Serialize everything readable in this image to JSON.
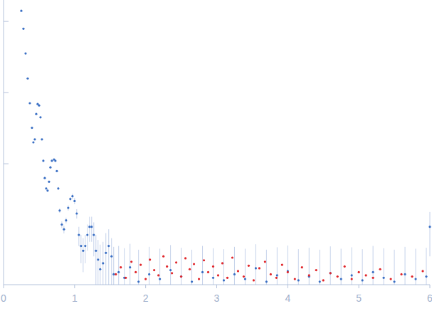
{
  "chart_data": {
    "type": "scatter",
    "log": "y",
    "tick_labels": "x",
    "xlim": [
      0,
      6
    ],
    "xticks": [
      0,
      1,
      2,
      3,
      4,
      5,
      6
    ],
    "ylim": [
      0.0002,
      2
    ],
    "yticks": [
      0.01,
      0.1,
      1
    ],
    "marker": "circle",
    "series": [
      {
        "color": "#3a6fc4",
        "x": [
          0.25,
          0.28,
          0.31,
          0.34,
          0.37,
          0.4,
          0.42,
          0.44,
          0.46,
          0.48,
          0.5,
          0.52,
          0.54,
          0.56,
          0.58,
          0.6,
          0.62,
          0.64,
          0.66,
          0.68,
          0.71,
          0.73,
          0.75,
          0.77,
          0.79,
          0.82,
          0.85,
          0.88,
          0.91,
          0.94,
          0.97,
          1.0,
          1.03,
          1.06,
          1.09,
          1.12,
          1.15,
          1.18,
          1.21,
          1.24,
          1.27,
          1.3,
          1.33,
          1.36,
          1.4,
          1.44,
          1.48,
          1.52,
          1.55,
          1.62,
          1.7,
          1.78,
          1.9,
          2.05,
          2.2,
          2.35,
          2.5,
          2.65,
          2.8,
          2.95,
          3.1,
          3.25,
          3.4,
          3.55,
          3.7,
          3.85,
          4.0,
          4.15,
          4.3,
          4.45,
          4.6,
          4.75,
          4.9,
          5.05,
          5.2,
          5.35,
          5.5,
          5.65,
          5.8,
          5.95,
          6.0
        ],
        "values": [
          1.41,
          0.79,
          0.355,
          0.158,
          0.071,
          0.032,
          0.02,
          0.022,
          0.05,
          0.069,
          0.066,
          0.045,
          0.022,
          0.011,
          0.0063,
          0.0045,
          0.0042,
          0.0056,
          0.0089,
          0.011,
          0.0115,
          0.011,
          0.0079,
          0.0045,
          0.0022,
          0.0014,
          0.0012,
          0.0016,
          0.0024,
          0.0032,
          0.0035,
          0.003,
          0.002,
          0.001,
          0.0007,
          0.0006,
          0.0007,
          0.001,
          0.0013,
          0.0013,
          0.001,
          0.0006,
          0.00045,
          0.00033,
          0.0004,
          0.00056,
          0.0007,
          0.0005,
          0.00028,
          0.0003,
          0.00025,
          0.00035,
          0.00022,
          0.00028,
          0.00024,
          0.00032,
          0.00026,
          0.00022,
          0.0003,
          0.00025,
          0.00023,
          0.00028,
          0.00024,
          0.00034,
          0.00022,
          0.00027,
          0.00031,
          0.00023,
          0.00026,
          0.00022,
          0.00029,
          0.00024,
          0.00027,
          0.00023,
          0.0003,
          0.00025,
          0.00022,
          0.00028,
          0.00024,
          0.00026,
          0.0013
        ],
        "errors": [
          0.02,
          0.01,
          0.005,
          0.002,
          0.001,
          0.0006,
          0.0004,
          0.0004,
          0.0008,
          0.001,
          0.001,
          0.0008,
          0.0005,
          0.0003,
          0.0002,
          0.00015,
          0.00015,
          0.0002,
          0.0003,
          0.0003,
          0.0003,
          0.0003,
          0.00025,
          0.0002,
          0.00015,
          0.00015,
          0.00015,
          0.00015,
          0.0002,
          0.0002,
          0.0003,
          0.0003,
          0.0003,
          0.0003,
          0.0003,
          0.0003,
          0.0003,
          0.0004,
          0.0005,
          0.0005,
          0.0005,
          0.0004,
          0.0004,
          0.0004,
          0.0004,
          0.0005,
          0.0005,
          0.0004,
          0.0004,
          0.0004,
          0.0004,
          0.0004,
          0.0004,
          0.0004,
          0.0004,
          0.0004,
          0.0004,
          0.0004,
          0.0004,
          0.0004,
          0.0004,
          0.0004,
          0.0004,
          0.0004,
          0.0004,
          0.0004,
          0.0004,
          0.0004,
          0.0004,
          0.0004,
          0.0004,
          0.0004,
          0.0004,
          0.0004,
          0.0004,
          0.0004,
          0.0004,
          0.0004,
          0.0004,
          0.0004,
          0.0008
        ]
      },
      {
        "color": "#e0262b",
        "x": [
          1.58,
          1.65,
          1.72,
          1.8,
          1.86,
          1.93,
          2.0,
          2.06,
          2.12,
          2.18,
          2.25,
          2.3,
          2.37,
          2.43,
          2.5,
          2.56,
          2.62,
          2.68,
          2.75,
          2.82,
          2.88,
          2.95,
          3.02,
          3.08,
          3.15,
          3.22,
          3.3,
          3.38,
          3.45,
          3.52,
          3.6,
          3.68,
          3.76,
          3.84,
          3.92,
          4.0,
          4.1,
          4.2,
          4.3,
          4.4,
          4.5,
          4.6,
          4.7,
          4.8,
          4.9,
          5.0,
          5.1,
          5.2,
          5.3,
          5.45,
          5.6,
          5.75,
          5.9
        ],
        "values": [
          0.00028,
          0.00035,
          0.00025,
          0.00042,
          0.0003,
          0.00038,
          0.00024,
          0.00045,
          0.00032,
          0.00027,
          0.0005,
          0.00036,
          0.00029,
          0.00041,
          0.00026,
          0.00047,
          0.00033,
          0.00039,
          0.00024,
          0.00044,
          0.0003,
          0.00036,
          0.00027,
          0.0004,
          0.00025,
          0.00048,
          0.00031,
          0.00026,
          0.00037,
          0.00023,
          0.00034,
          0.00042,
          0.00028,
          0.00025,
          0.00038,
          0.0003,
          0.00024,
          0.00035,
          0.00027,
          0.00032,
          0.00023,
          0.00029,
          0.00026,
          0.00036,
          0.00024,
          0.0003,
          0.00027,
          0.00025,
          0.00033,
          0.00024,
          0.00028,
          0.00026,
          0.00031
        ]
      }
    ]
  }
}
